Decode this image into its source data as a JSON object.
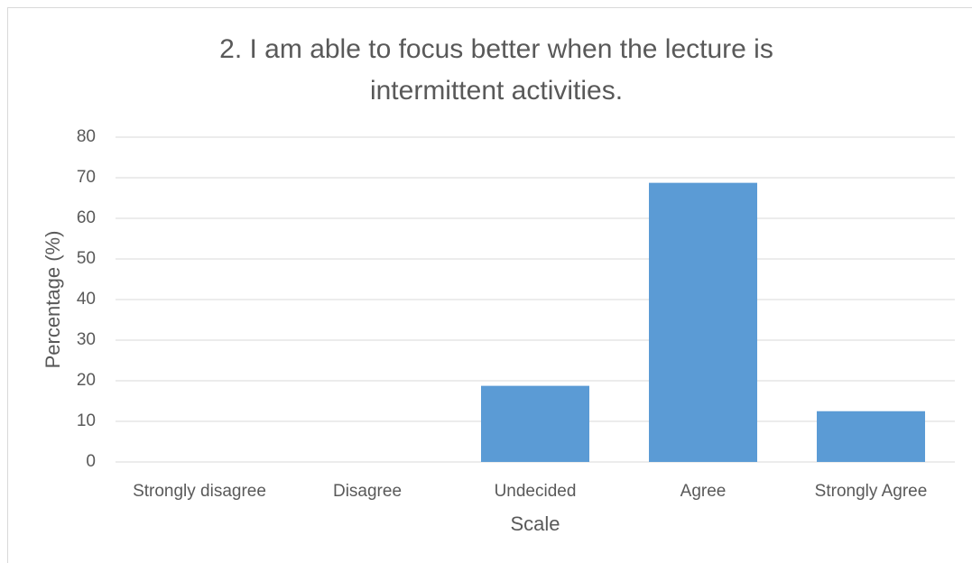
{
  "chart_data": {
    "type": "bar",
    "title": "2. I am able to focus better when the lecture is intermittent activities.",
    "x_label": "Scale",
    "y_label": "Percentage (%)",
    "categories": [
      "Strongly disagree",
      "Disagree",
      "Undecided",
      "Agree",
      "Strongly Agree"
    ],
    "values": [
      0,
      0,
      18.75,
      68.75,
      12.5
    ],
    "color": "#5b9bd5",
    "ylim": [
      0,
      80
    ],
    "yticks": [
      0,
      10,
      20,
      30,
      40,
      50,
      60,
      70,
      80
    ],
    "grid": true
  }
}
